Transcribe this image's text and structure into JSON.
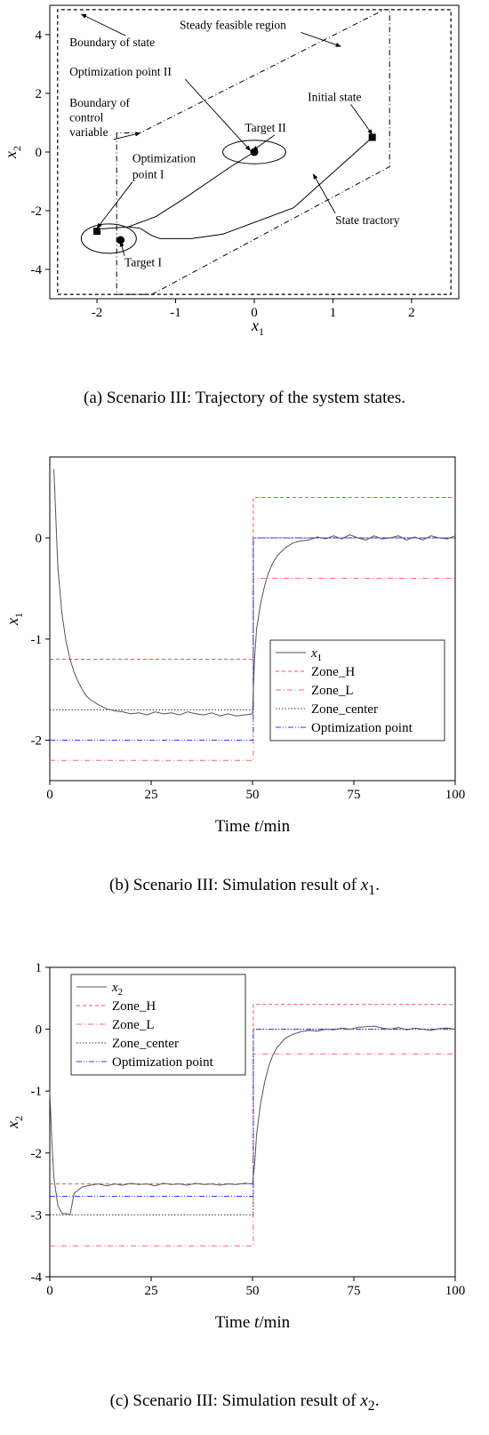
{
  "figures": [
    {
      "id": "a",
      "caption_prefix": "(a) Scenario III: Trajectory of the system states.",
      "xlabel": "x",
      "xlabel_sub": "1",
      "ylabel": "x",
      "ylabel_sub": "2"
    },
    {
      "id": "b",
      "caption_prefix": "(b) Scenario III: Simulation result of ",
      "caption_var": "x",
      "caption_sub": "1",
      "caption_suffix": ".",
      "xlabel": "Time ",
      "xlabel_var": "t",
      "xlabel_unit": "/min",
      "ylabel": "x",
      "ylabel_sub": "1"
    },
    {
      "id": "c",
      "caption_prefix": "(c) Scenario III: Simulation result of ",
      "caption_var": "x",
      "caption_sub": "2",
      "caption_suffix": ".",
      "xlabel": "Time ",
      "xlabel_var": "t",
      "xlabel_unit": "/min",
      "ylabel": "x",
      "ylabel_sub": "2"
    }
  ],
  "chart_data": [
    {
      "type": "line",
      "title": "",
      "xlim": [
        -2.6,
        2.6
      ],
      "ylim": [
        -5,
        5
      ],
      "xticks": [
        -2,
        -1,
        0,
        1,
        2
      ],
      "yticks": [
        -4,
        -2,
        0,
        2,
        4
      ],
      "xticklabels": [
        "-2",
        "-1",
        "0",
        "1",
        "2"
      ],
      "yticklabels": [
        "-4",
        "-2",
        "0",
        "2",
        "4"
      ],
      "grid": false,
      "boundary_of_state": [
        [
          -2.5,
          -4.85
        ],
        [
          2.5,
          -4.85
        ],
        [
          2.5,
          4.85
        ],
        [
          -2.5,
          4.85
        ]
      ],
      "steady_feasible_region": [
        [
          -1.75,
          0.65
        ],
        [
          -1.75,
          -4.85
        ],
        [
          -1.3,
          -4.85
        ],
        [
          1.72,
          -0.5
        ],
        [
          1.72,
          4.85
        ],
        [
          1.65,
          4.85
        ],
        [
          -1.45,
          0.65
        ]
      ],
      "state_trajectory": [
        [
          1.5,
          0.5
        ],
        [
          1.0,
          -0.7
        ],
        [
          0.5,
          -1.9
        ],
        [
          -0.4,
          -2.8
        ],
        [
          -0.8,
          -2.95
        ],
        [
          -1.2,
          -2.95
        ],
        [
          -1.3,
          -2.85
        ],
        [
          -1.45,
          -2.6
        ],
        [
          -1.6,
          -2.55
        ],
        [
          -1.95,
          -2.62
        ],
        [
          -1.6,
          -2.55
        ],
        [
          -1.25,
          -2.2
        ],
        [
          -0.9,
          -1.6
        ],
        [
          -0.3,
          -0.5
        ],
        [
          0.0,
          0.0
        ]
      ],
      "initial_state": [
        1.5,
        0.5
      ],
      "optimization_point_I": [
        -2.0,
        -2.7
      ],
      "optimization_point_II": [
        0.0,
        0.0
      ],
      "target_I": [
        -1.7,
        -3.0
      ],
      "target_II": [
        0.0,
        0.0
      ],
      "zone_I": {
        "center": [
          -1.85,
          -2.95
        ],
        "rx": 0.35,
        "ry": 0.5
      },
      "zone_II": {
        "center": [
          0.0,
          0.0
        ],
        "rx": 0.4,
        "ry": 0.4
      },
      "annotations": [
        {
          "text": "Steady feasible region",
          "at": [
            -0.95,
            4.2
          ],
          "arrow_to": [
            1.1,
            3.6
          ]
        },
        {
          "text": "Boundary of state",
          "at": [
            -2.35,
            3.6
          ],
          "arrow_to": [
            -2.2,
            4.7
          ]
        },
        {
          "text": "Optimization point II",
          "at": [
            -2.35,
            2.6
          ],
          "arrow_to": [
            -0.05,
            0.05
          ]
        },
        {
          "text": "Boundary of",
          "at": [
            -2.35,
            1.55
          ],
          "arrow_to": null
        },
        {
          "text": "control",
          "at": [
            -2.35,
            1.05
          ],
          "arrow_to": null
        },
        {
          "text": "variable",
          "at": [
            -2.35,
            0.55
          ],
          "arrow_to": [
            -1.45,
            0.65
          ]
        },
        {
          "text": "Target II",
          "at": [
            -0.12,
            0.7
          ],
          "arrow_to": [
            -0.02,
            0.05
          ]
        },
        {
          "text": "Initial state",
          "at": [
            0.68,
            1.75
          ],
          "arrow_to": [
            1.5,
            0.6
          ]
        },
        {
          "text": "Optimization",
          "at": [
            -1.55,
            -0.35
          ],
          "arrow_to": null
        },
        {
          "text": "point I",
          "at": [
            -1.55,
            -0.9
          ],
          "arrow_to": [
            -2.0,
            -2.6
          ]
        },
        {
          "text": "State tractory",
          "at": [
            1.03,
            -2.45
          ],
          "arrow_to": [
            0.75,
            -0.75
          ]
        },
        {
          "text": "Target I",
          "at": [
            -1.65,
            -3.9
          ],
          "arrow_to": [
            -1.7,
            -3.05
          ]
        }
      ]
    },
    {
      "type": "line",
      "title": "",
      "xlabel": "Time t/min",
      "ylabel": "x1",
      "xlim": [
        0,
        100
      ],
      "ylim": [
        -2.4,
        0.8
      ],
      "xticks": [
        0,
        25,
        50,
        75,
        100
      ],
      "yticks": [
        -2,
        -1,
        0
      ],
      "xticklabels": [
        "0",
        "25",
        "50",
        "75",
        "100"
      ],
      "yticklabels": [
        "-2",
        "-1",
        "0"
      ],
      "legend": "center-right",
      "grid": false,
      "series": [
        {
          "name": "x1",
          "color": "#555555",
          "style": "solid",
          "x": [
            1,
            2,
            3,
            4,
            5,
            6,
            7,
            8,
            9,
            10,
            12,
            14,
            16,
            18,
            20,
            22,
            24,
            26,
            28,
            30,
            32,
            34,
            36,
            38,
            40,
            42,
            44,
            46,
            48,
            50,
            50.5,
            51,
            52,
            53,
            54,
            55,
            56,
            58,
            60,
            62,
            64,
            66,
            68,
            70,
            72,
            74,
            76,
            78,
            80,
            82,
            84,
            86,
            88,
            90,
            92,
            94,
            96,
            98,
            100
          ],
          "y": [
            0.68,
            -0.3,
            -0.75,
            -1.02,
            -1.2,
            -1.33,
            -1.42,
            -1.5,
            -1.56,
            -1.6,
            -1.65,
            -1.69,
            -1.71,
            -1.72,
            -1.74,
            -1.73,
            -1.75,
            -1.72,
            -1.74,
            -1.73,
            -1.75,
            -1.72,
            -1.74,
            -1.75,
            -1.73,
            -1.76,
            -1.74,
            -1.76,
            -1.75,
            -1.74,
            -1.2,
            -0.9,
            -0.65,
            -0.47,
            -0.34,
            -0.25,
            -0.18,
            -0.1,
            -0.05,
            -0.03,
            -0.02,
            0.01,
            -0.01,
            0.02,
            -0.01,
            0.03,
            0.0,
            -0.02,
            0.02,
            -0.01,
            0.0,
            0.02,
            -0.02,
            0.01,
            -0.02,
            0.02,
            0.0,
            -0.01,
            0.02
          ]
        },
        {
          "name": "Zone_H",
          "color": "#ff4d4d",
          "style": "dashed",
          "x": [
            0,
            50.2,
            50.2,
            100
          ],
          "y": [
            -1.2,
            -1.2,
            0.4,
            0.4
          ]
        },
        {
          "name": "Zone_L",
          "color": "#ff6666",
          "style": "dashdot",
          "x": [
            0,
            50.2,
            50.2,
            100
          ],
          "y": [
            -2.2,
            -2.2,
            -0.4,
            -0.4
          ]
        },
        {
          "name": "Zone_center",
          "color": "#333333",
          "style": "dotted",
          "x": [
            0,
            50.2,
            50.2,
            100
          ],
          "y": [
            -1.7,
            -1.7,
            0.0,
            0.0
          ]
        },
        {
          "name": "Optimization point",
          "color": "#3333ff",
          "style": "dashdotdot",
          "x": [
            0,
            50.2,
            50.2,
            100
          ],
          "y": [
            -2.0,
            -2.0,
            0.0,
            0.0
          ]
        }
      ]
    },
    {
      "type": "line",
      "title": "",
      "xlabel": "Time t/min",
      "ylabel": "x2",
      "xlim": [
        0,
        100
      ],
      "ylim": [
        -4,
        1
      ],
      "xticks": [
        0,
        25,
        50,
        75,
        100
      ],
      "yticks": [
        -4,
        -3,
        -2,
        -1,
        0,
        1
      ],
      "xticklabels": [
        "0",
        "25",
        "50",
        "75",
        "100"
      ],
      "yticklabels": [
        "-4",
        "-3",
        "-2",
        "-1",
        "0",
        "1"
      ],
      "legend": "top-left",
      "grid": false,
      "series": [
        {
          "name": "x2",
          "color": "#555555",
          "style": "solid",
          "x": [
            0,
            0.5,
            1,
            2,
            3,
            4,
            5,
            6,
            8,
            10,
            12,
            14,
            16,
            18,
            20,
            22,
            24,
            26,
            28,
            30,
            32,
            34,
            36,
            38,
            40,
            42,
            44,
            46,
            48,
            50,
            50.5,
            51,
            52,
            53,
            54,
            55,
            56,
            58,
            60,
            62,
            64,
            66,
            68,
            70,
            72,
            74,
            76,
            78,
            80,
            82,
            84,
            86,
            88,
            90,
            92,
            94,
            96,
            98,
            100
          ],
          "y": [
            -1.0,
            -1.8,
            -2.4,
            -2.85,
            -2.98,
            -2.98,
            -3.0,
            -2.65,
            -2.55,
            -2.52,
            -2.5,
            -2.53,
            -2.5,
            -2.52,
            -2.49,
            -2.51,
            -2.5,
            -2.53,
            -2.49,
            -2.51,
            -2.5,
            -2.52,
            -2.49,
            -2.51,
            -2.5,
            -2.52,
            -2.5,
            -2.51,
            -2.49,
            -2.5,
            -2.2,
            -1.7,
            -1.2,
            -0.85,
            -0.6,
            -0.42,
            -0.3,
            -0.15,
            -0.08,
            -0.04,
            -0.02,
            -0.03,
            0.0,
            -0.01,
            0.02,
            0.0,
            0.03,
            0.04,
            0.05,
            0.02,
            0.0,
            0.03,
            -0.01,
            0.02,
            0.0,
            -0.02,
            0.01,
            0.02,
            0.0
          ]
        },
        {
          "name": "Zone_H",
          "color": "#ff4d4d",
          "style": "dashed",
          "x": [
            0,
            50.2,
            50.2,
            100
          ],
          "y": [
            -2.5,
            -2.5,
            0.4,
            0.4
          ]
        },
        {
          "name": "Zone_L",
          "color": "#ff6666",
          "style": "dashdot",
          "x": [
            0,
            50.2,
            50.2,
            100
          ],
          "y": [
            -3.5,
            -3.5,
            -0.4,
            -0.4
          ]
        },
        {
          "name": "Zone_center",
          "color": "#333333",
          "style": "dotted",
          "x": [
            0,
            50.2,
            50.2,
            100
          ],
          "y": [
            -3.0,
            -3.0,
            0.0,
            0.0
          ]
        },
        {
          "name": "Optimization point",
          "color": "#3333ff",
          "style": "dashdotdot",
          "x": [
            0,
            50.2,
            50.2,
            100
          ],
          "y": [
            -2.7,
            -2.7,
            0.0,
            0.0
          ]
        }
      ]
    }
  ]
}
